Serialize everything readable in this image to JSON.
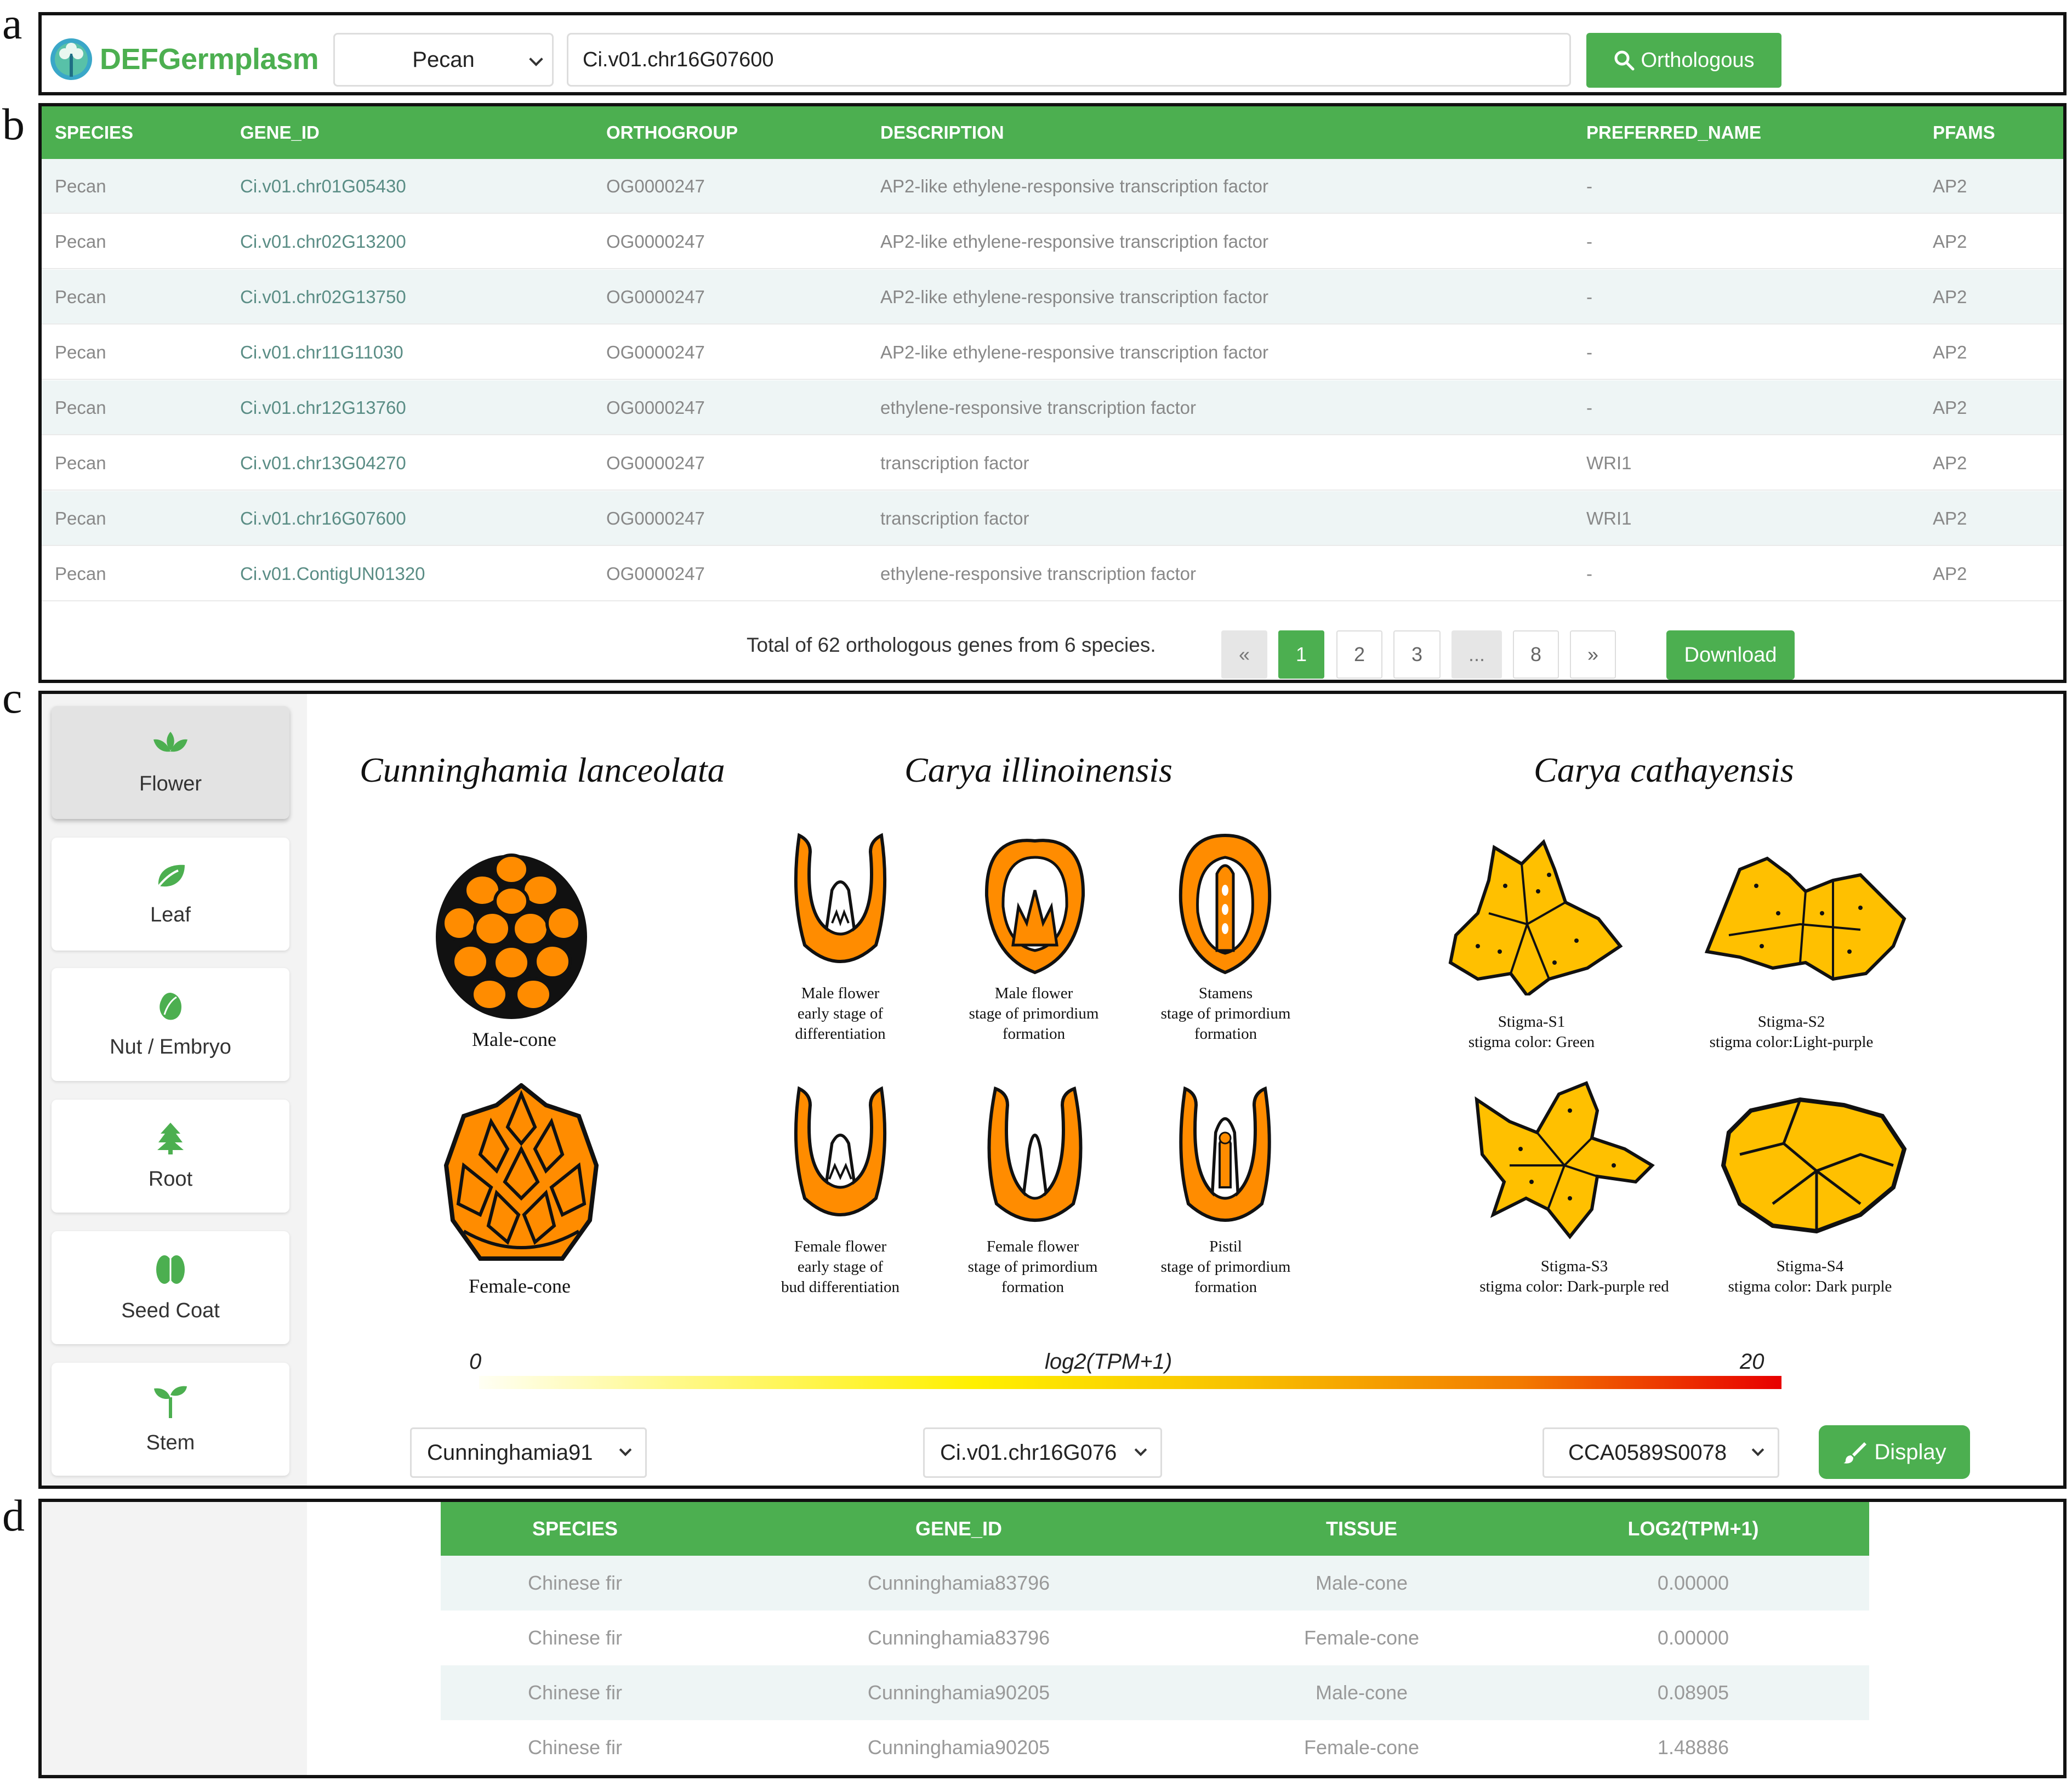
{
  "panel_letters": {
    "a": "a",
    "b": "b",
    "c": "c",
    "d": "d"
  },
  "header": {
    "logo_text": "DEFGermplasm",
    "species_select": "Pecan",
    "gene_input": "Ci.v01.chr16G07600",
    "orthologous_button": "Orthologous"
  },
  "ortho_table": {
    "columns": [
      "SPECIES",
      "GENE_ID",
      "ORTHOGROUP",
      "DESCRIPTION",
      "PREFERRED_NAME",
      "PFAMS"
    ],
    "rows": [
      [
        "Pecan",
        "Ci.v01.chr01G05430",
        "OG0000247",
        "AP2-like ethylene-responsive transcription factor",
        "-",
        "AP2"
      ],
      [
        "Pecan",
        "Ci.v01.chr02G13200",
        "OG0000247",
        "AP2-like ethylene-responsive transcription factor",
        "-",
        "AP2"
      ],
      [
        "Pecan",
        "Ci.v01.chr02G13750",
        "OG0000247",
        "AP2-like ethylene-responsive transcription factor",
        "-",
        "AP2"
      ],
      [
        "Pecan",
        "Ci.v01.chr11G11030",
        "OG0000247",
        "AP2-like ethylene-responsive transcription factor",
        "-",
        "AP2"
      ],
      [
        "Pecan",
        "Ci.v01.chr12G13760",
        "OG0000247",
        "ethylene-responsive transcription factor",
        "-",
        "AP2"
      ],
      [
        "Pecan",
        "Ci.v01.chr13G04270",
        "OG0000247",
        "transcription factor",
        "WRI1",
        "AP2"
      ],
      [
        "Pecan",
        "Ci.v01.chr16G07600",
        "OG0000247",
        "transcription factor",
        "WRI1",
        "AP2"
      ],
      [
        "Pecan",
        "Ci.v01.ContigUN01320",
        "OG0000247",
        "ethylene-responsive transcription factor",
        "-",
        "AP2"
      ]
    ],
    "total_text": "Total of 62 orthologous genes from 6 species.",
    "pagination": {
      "prev": "«",
      "pages": [
        "1",
        "2",
        "3",
        "...",
        "8"
      ],
      "next": "»",
      "active_page": "1"
    },
    "download_button": "Download"
  },
  "tissue_menu": [
    "Flower",
    "Leaf",
    "Nut  /  Embryo",
    "Root",
    "Seed Coat",
    "Stem"
  ],
  "tissue_active": "Flower",
  "tissue_icons": [
    "flower-icon",
    "leaf-icon",
    "nut-icon",
    "tree-icon",
    "seed-icon",
    "sprout-icon"
  ],
  "species_titles": [
    "Cunninghamia lanceolata",
    "Carya illinoinensis",
    "Carya cathayensis"
  ],
  "organs": {
    "male_cone": "Male-cone",
    "female_cone": "Female-cone",
    "male_early": [
      "Male flower",
      "early stage of",
      "differentiation"
    ],
    "male_primordium": [
      "Male flower",
      "stage of primordium",
      "formation"
    ],
    "stamens": [
      "Stamens",
      "stage of primordium",
      "formation"
    ],
    "female_early": [
      "Female flower",
      "early stage of",
      "bud differentiation"
    ],
    "female_primordium": [
      "Female flower",
      "stage of primordium",
      "formation"
    ],
    "pistil": [
      "Pistil",
      "stage of primordium",
      "formation"
    ],
    "stigma_s1": [
      "Stigma-S1",
      "stigma color: Green"
    ],
    "stigma_s2": [
      "Stigma-S2",
      "stigma color:Light-purple"
    ],
    "stigma_s3": [
      "Stigma-S3",
      "stigma color: Dark-purple red"
    ],
    "stigma_s4": [
      "Stigma-S4",
      "stigma color: Dark purple"
    ]
  },
  "scale": {
    "min": "0",
    "label": "log2(TPM+1)",
    "max": "20",
    "colors": [
      "#fffff4",
      "#fff000",
      "#f27a00",
      "#e80000"
    ]
  },
  "controls": {
    "cunninghamia_select": "Cunninghamia91",
    "pecan_select": "Ci.v01.chr16G076",
    "cathayensis_select": "CCA0589S0078",
    "display_button": "Display"
  },
  "expr_table": {
    "columns": [
      "SPECIES",
      "GENE_ID",
      "TISSUE",
      "LOG2(TPM+1)"
    ],
    "rows": [
      [
        "Chinese fir",
        "Cunninghamia83796",
        "Male-cone",
        "0.00000"
      ],
      [
        "Chinese fir",
        "Cunninghamia83796",
        "Female-cone",
        "0.00000"
      ],
      [
        "Chinese fir",
        "Cunninghamia90205",
        "Male-cone",
        "0.08905"
      ],
      [
        "Chinese fir",
        "Cunninghamia90205",
        "Female-cone",
        "1.48886"
      ]
    ]
  },
  "colors": {
    "brand_green": "#4CAF50",
    "organ_orange": "#ff8c00",
    "stigma_yellow": "#ffc000"
  }
}
